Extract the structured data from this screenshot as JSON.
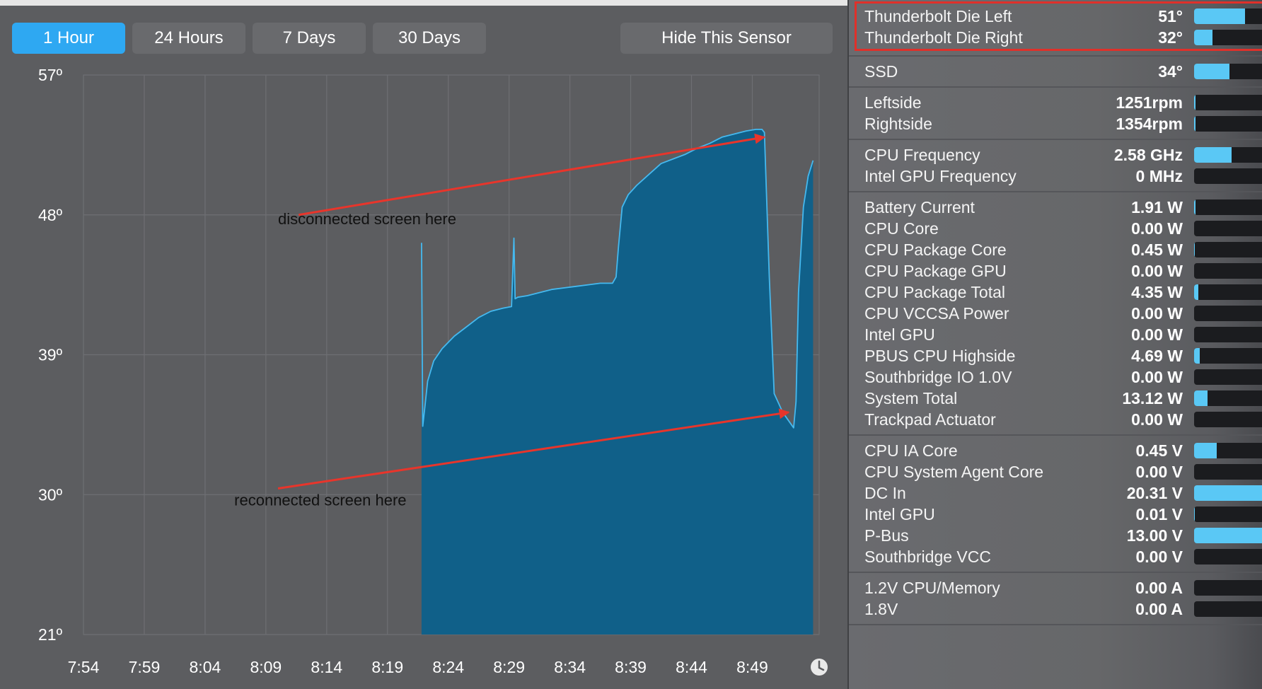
{
  "time_range": {
    "buttons": [
      {
        "label": "1 Hour",
        "active": true
      },
      {
        "label": "24 Hours",
        "active": false
      },
      {
        "label": "7 Days",
        "active": false
      },
      {
        "label": "30 Days",
        "active": false
      }
    ],
    "hide_label": "Hide This Sensor"
  },
  "chart_data": {
    "type": "area",
    "y_ticks": [
      "57º",
      "48º",
      "39º",
      "30º",
      "21º"
    ],
    "ylim": [
      21,
      57
    ],
    "x_ticks": [
      "7:54",
      "7:59",
      "8:04",
      "8:09",
      "8:14",
      "8:19",
      "8:24",
      "8:29",
      "8:34",
      "8:39",
      "8:44",
      "8:49"
    ],
    "x_minutes_since_7_54": [
      0,
      5,
      10,
      15,
      20,
      25,
      30,
      35,
      40,
      45,
      50,
      55
    ],
    "xlim_minutes": [
      0,
      60.5
    ],
    "series": [
      {
        "x": [
          27.8,
          27.9,
          28.1,
          28.3,
          28.8,
          29.5,
          30.5,
          31.5,
          32.5,
          33.5,
          34.5,
          35.2,
          35.4,
          35.5,
          35.7,
          36.5,
          37.5,
          38.5,
          39.5,
          40.5,
          41.5,
          42.5,
          43.5,
          43.8,
          44.0,
          44.3,
          44.8,
          45.5,
          46.5,
          47.5,
          48.5,
          49.5,
          50.5,
          51.5,
          52.5,
          53.5,
          54.5,
          55.3,
          55.8,
          56.0,
          56.4,
          56.8,
          57.5,
          58.4,
          58.6,
          58.8,
          59.2,
          59.6,
          60.0
        ],
        "y": [
          46.2,
          34.4,
          35.8,
          37.3,
          38.6,
          39.4,
          40.2,
          40.8,
          41.4,
          41.8,
          42.0,
          42.1,
          46.5,
          42.6,
          42.7,
          42.8,
          43.0,
          43.2,
          43.3,
          43.4,
          43.5,
          43.6,
          43.6,
          44.0,
          46.0,
          48.5,
          49.3,
          49.9,
          50.6,
          51.3,
          51.6,
          51.9,
          52.3,
          52.6,
          53.0,
          53.2,
          53.4,
          53.5,
          53.5,
          53.3,
          44.0,
          36.5,
          35.3,
          34.3,
          36.0,
          43.0,
          48.5,
          50.5,
          51.5
        ]
      }
    ],
    "annotations": [
      {
        "text": "disconnected screen here",
        "x": 16.0,
        "y": 47.4,
        "arrow_from": [
          17.7,
          48.0
        ],
        "arrow_to": [
          56.0,
          53.0
        ]
      },
      {
        "text": "reconnected screen here",
        "x": 12.4,
        "y": 29.3,
        "arrow_from": [
          16.0,
          30.4
        ],
        "arrow_to": [
          58.0,
          35.3
        ]
      }
    ]
  },
  "sensor_groups": [
    {
      "highlighted": true,
      "rows": [
        {
          "name": "Thunderbolt Die Left",
          "value": "51°",
          "fill": 0.65
        },
        {
          "name": "Thunderbolt Die Right",
          "value": "32°",
          "fill": 0.24
        }
      ]
    },
    {
      "rows": [
        {
          "name": "SSD",
          "value": "34°",
          "fill": 0.45
        }
      ]
    },
    {
      "rows": [
        {
          "name": "Leftside",
          "value": "1251rpm",
          "fill": 0.02
        },
        {
          "name": "Rightside",
          "value": "1354rpm",
          "fill": 0.02
        }
      ]
    },
    {
      "rows": [
        {
          "name": "CPU Frequency",
          "value": "2.58 GHz",
          "fill": 0.48
        },
        {
          "name": "Intel GPU Frequency",
          "value": "0 MHz",
          "fill": 0.0
        }
      ]
    },
    {
      "rows": [
        {
          "name": "Battery Current",
          "value": "1.91 W",
          "fill": 0.02
        },
        {
          "name": "CPU Core",
          "value": "0.00 W",
          "fill": 0.0
        },
        {
          "name": "CPU Package Core",
          "value": "0.45 W",
          "fill": 0.01
        },
        {
          "name": "CPU Package GPU",
          "value": "0.00 W",
          "fill": 0.0
        },
        {
          "name": "CPU Package Total",
          "value": "4.35 W",
          "fill": 0.05
        },
        {
          "name": "CPU VCCSA Power",
          "value": "0.00 W",
          "fill": 0.0
        },
        {
          "name": "Intel GPU",
          "value": "0.00 W",
          "fill": 0.0
        },
        {
          "name": "PBUS CPU Highside",
          "value": "4.69 W",
          "fill": 0.07
        },
        {
          "name": "Southbridge IO 1.0V",
          "value": "0.00 W",
          "fill": 0.0
        },
        {
          "name": "System Total",
          "value": "13.12 W",
          "fill": 0.17
        },
        {
          "name": "Trackpad Actuator",
          "value": "0.00 W",
          "fill": 0.0
        }
      ]
    },
    {
      "rows": [
        {
          "name": "CPU IA Core",
          "value": "0.45 V",
          "fill": 0.29
        },
        {
          "name": "CPU System Agent Core",
          "value": "0.00 V",
          "fill": 0.0
        },
        {
          "name": "DC In",
          "value": "20.31 V",
          "fill": 1.0
        },
        {
          "name": "Intel GPU",
          "value": "0.01 V",
          "fill": 0.01
        },
        {
          "name": "P-Bus",
          "value": "13.00 V",
          "fill": 1.0
        },
        {
          "name": "Southbridge VCC",
          "value": "0.00 V",
          "fill": 0.0
        }
      ]
    },
    {
      "rows": [
        {
          "name": "1.2V CPU/Memory",
          "value": "0.00 A",
          "fill": 0.0
        },
        {
          "name": "1.8V",
          "value": "0.00 A",
          "fill": 0.0
        }
      ]
    }
  ],
  "colors": {
    "area_fill": "#106089",
    "line": "#45b9ef",
    "arrow": "#e8352b",
    "active_button": "#2ea8f2",
    "bar_fill": "#5ac8f5"
  }
}
